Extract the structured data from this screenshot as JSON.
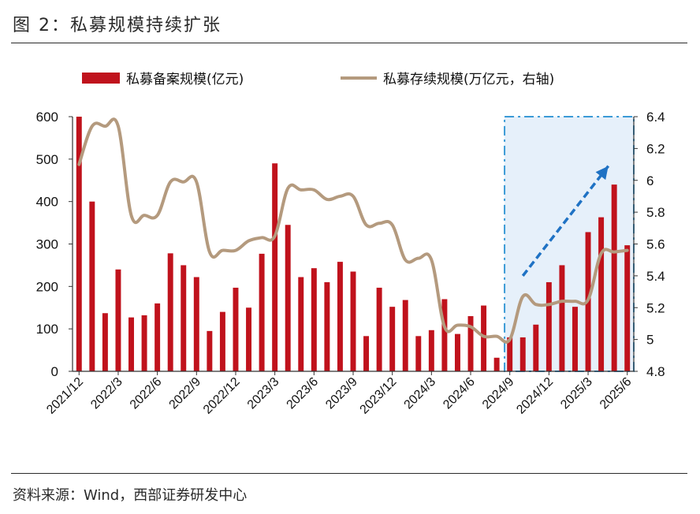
{
  "figure": {
    "title": "图 2：私募规模持续扩张",
    "source": "资料来源：Wind，西部证券研发中心"
  },
  "colors": {
    "bar": "#c0121c",
    "line": "#b49a7e",
    "highlight_fill": "#e6f0fa",
    "highlight_border": "#3a9ad6",
    "arrow": "#1f72c4"
  },
  "chart_data": {
    "type": "bar",
    "legend": {
      "position": "top",
      "labels": [
        "私募备案规模(亿元)",
        "私募存续规模(万亿元，右轴)"
      ]
    },
    "grid": false,
    "x_tick_labels": [
      "2021/12",
      "2022/3",
      "2022/6",
      "2022/9",
      "2022/12",
      "2023/3",
      "2023/6",
      "2023/9",
      "2023/12",
      "2024/3",
      "2024/6",
      "2024/9",
      "2024/12",
      "2025/3",
      "2025/6"
    ],
    "ylim_left": [
      0,
      600
    ],
    "y_ticks_left": [
      0,
      100,
      200,
      300,
      400,
      500,
      600
    ],
    "ylim_right": [
      4.8,
      6.4
    ],
    "y_ticks_right": [
      "4.8",
      "5",
      "5.2",
      "5.4",
      "5.6",
      "5.8",
      "6",
      "6.2",
      "6.4"
    ],
    "x": [
      "2021/12",
      "2022/1",
      "2022/2",
      "2022/3",
      "2022/4",
      "2022/5",
      "2022/6",
      "2022/7",
      "2022/8",
      "2022/9",
      "2022/10",
      "2022/11",
      "2022/12",
      "2023/1",
      "2023/2",
      "2023/3",
      "2023/4",
      "2023/5",
      "2023/6",
      "2023/7",
      "2023/8",
      "2023/9",
      "2023/10",
      "2023/11",
      "2023/12",
      "2024/1",
      "2024/2",
      "2024/3",
      "2024/4",
      "2024/5",
      "2024/6",
      "2024/7",
      "2024/8",
      "2024/9",
      "2024/10",
      "2024/11",
      "2024/12",
      "2025/1",
      "2025/2",
      "2025/3",
      "2025/4",
      "2025/5",
      "2025/6"
    ],
    "series": [
      {
        "name": "私募备案规模(亿元)",
        "axis": "left",
        "type": "bar",
        "values": [
          600,
          400,
          137,
          240,
          127,
          132,
          160,
          278,
          250,
          222,
          95,
          140,
          197,
          150,
          277,
          490,
          345,
          222,
          243,
          210,
          258,
          235,
          83,
          197,
          152,
          168,
          83,
          97,
          170,
          88,
          130,
          155,
          32,
          80,
          80,
          110,
          210,
          250,
          152,
          328,
          363,
          440,
          297
        ]
      },
      {
        "name": "私募存续规模(万亿元，右轴)",
        "axis": "right",
        "type": "line",
        "values": [
          6.1,
          6.34,
          6.34,
          6.34,
          5.78,
          5.78,
          5.78,
          5.99,
          5.99,
          5.99,
          5.55,
          5.56,
          5.56,
          5.62,
          5.64,
          5.65,
          5.95,
          5.94,
          5.94,
          5.88,
          5.9,
          5.9,
          5.72,
          5.73,
          5.72,
          5.5,
          5.51,
          5.5,
          5.08,
          5.09,
          5.08,
          5.02,
          5.02,
          5.0,
          5.27,
          5.22,
          5.22,
          5.24,
          5.24,
          5.25,
          5.54,
          5.55,
          5.56
        ]
      }
    ]
  }
}
